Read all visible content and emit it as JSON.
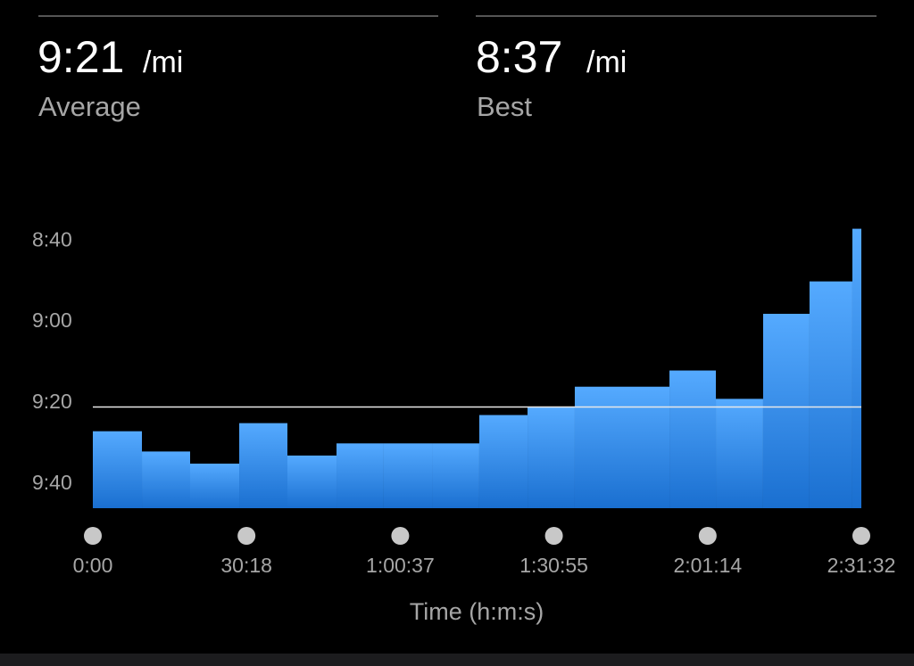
{
  "stats": [
    {
      "value": "9:21",
      "unit": "/mi",
      "label": "Average"
    },
    {
      "value": "8:37",
      "unit": "/mi",
      "label": "Best"
    }
  ],
  "chart_data": {
    "type": "histogram",
    "xlabel": "Time (h:m:s)",
    "bins": [
      0,
      581,
      1151,
      1732,
      2302,
      2883,
      3442,
      4013,
      4572,
      5143,
      5702,
      6262,
      6822,
      7371,
      7930,
      8479,
      8986,
      9092
    ],
    "values": [
      567,
      572,
      575,
      565,
      573,
      570,
      570,
      570,
      563,
      561,
      556,
      556,
      552,
      559,
      538,
      530,
      517
    ],
    "reference_line": 561,
    "color_top": "#55aaff",
    "color_bottom": "#1a6fd0",
    "line_color": "#e8e8e8",
    "xlim": [
      0,
      9092
    ],
    "xticks": [
      {
        "value": 0,
        "label": "0:00"
      },
      {
        "value": 1818,
        "label": "30:18"
      },
      {
        "value": 3637,
        "label": "1:00:37"
      },
      {
        "value": 5455,
        "label": "1:30:55"
      },
      {
        "value": 7274,
        "label": "2:01:14"
      },
      {
        "value": 9092,
        "label": "2:31:32"
      }
    ],
    "ylim": [
      586,
      515
    ],
    "yticks": [
      {
        "value": 520,
        "label": "8:40"
      },
      {
        "value": 540,
        "label": "9:00"
      },
      {
        "value": 560,
        "label": "9:20"
      },
      {
        "value": 580,
        "label": "9:40"
      }
    ]
  }
}
